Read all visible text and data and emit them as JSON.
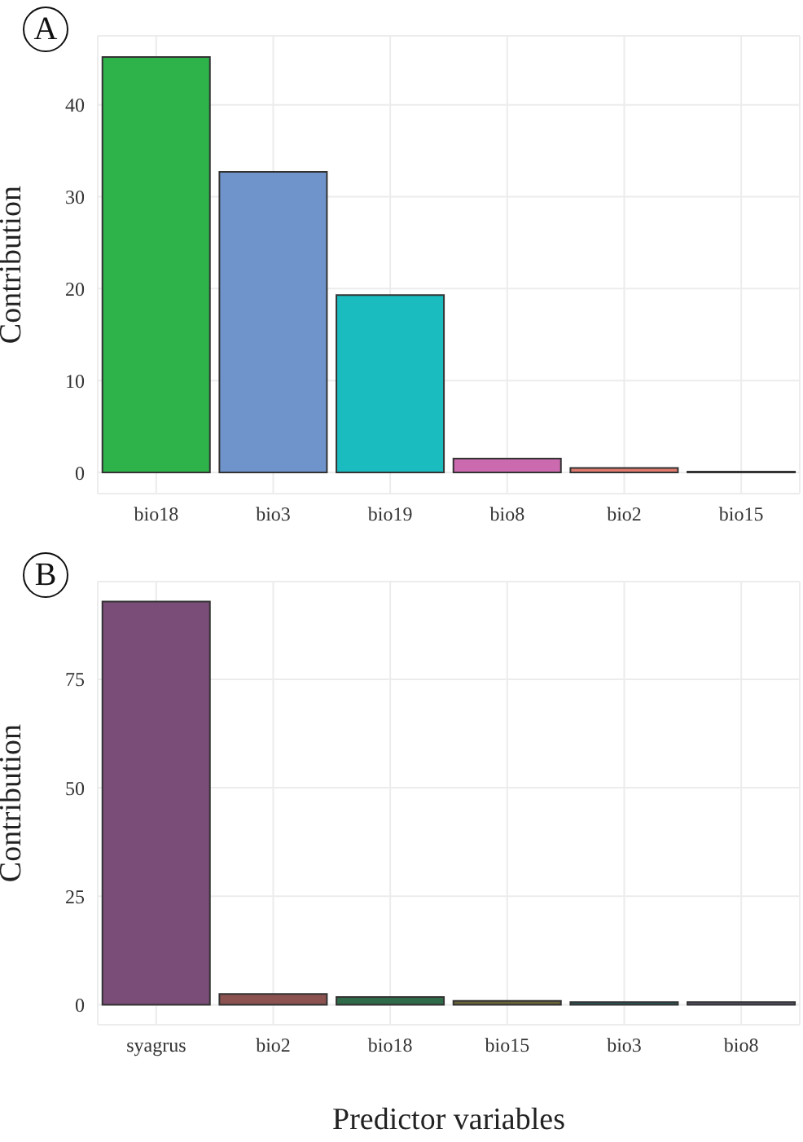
{
  "chart_data": [
    {
      "type": "bar",
      "title": "A",
      "ylabel": "Contribution",
      "categories": [
        "bio18",
        "bio3",
        "bio19",
        "bio8",
        "bio2",
        "bio15"
      ],
      "values": [
        45.2,
        32.7,
        19.3,
        1.5,
        0.5,
        0.1
      ],
      "colors": [
        "#2db34a",
        "#6f94cc",
        "#1bbcc0",
        "#cc6aaf",
        "#e07a6e",
        "#a0a0a0"
      ],
      "ylim": [
        -2.3,
        47.5
      ],
      "yticks": [
        0,
        10,
        20,
        30,
        40
      ],
      "grid": true,
      "legend": false
    },
    {
      "type": "bar",
      "title": "B",
      "xlabel": "Predictor variables",
      "ylabel": "Contribution",
      "categories": [
        "syagrus",
        "bio2",
        "bio18",
        "bio15",
        "bio3",
        "bio8"
      ],
      "values": [
        92.9,
        2.5,
        1.8,
        0.9,
        0.6,
        0.6
      ],
      "colors": [
        "#7a4d78",
        "#8b5250",
        "#2f6b48",
        "#6b6538",
        "#2a5a5a",
        "#5a5670"
      ],
      "ylim": [
        -4.6,
        97.5
      ],
      "yticks": [
        0,
        25,
        50,
        75
      ],
      "grid": true,
      "legend": false
    }
  ]
}
